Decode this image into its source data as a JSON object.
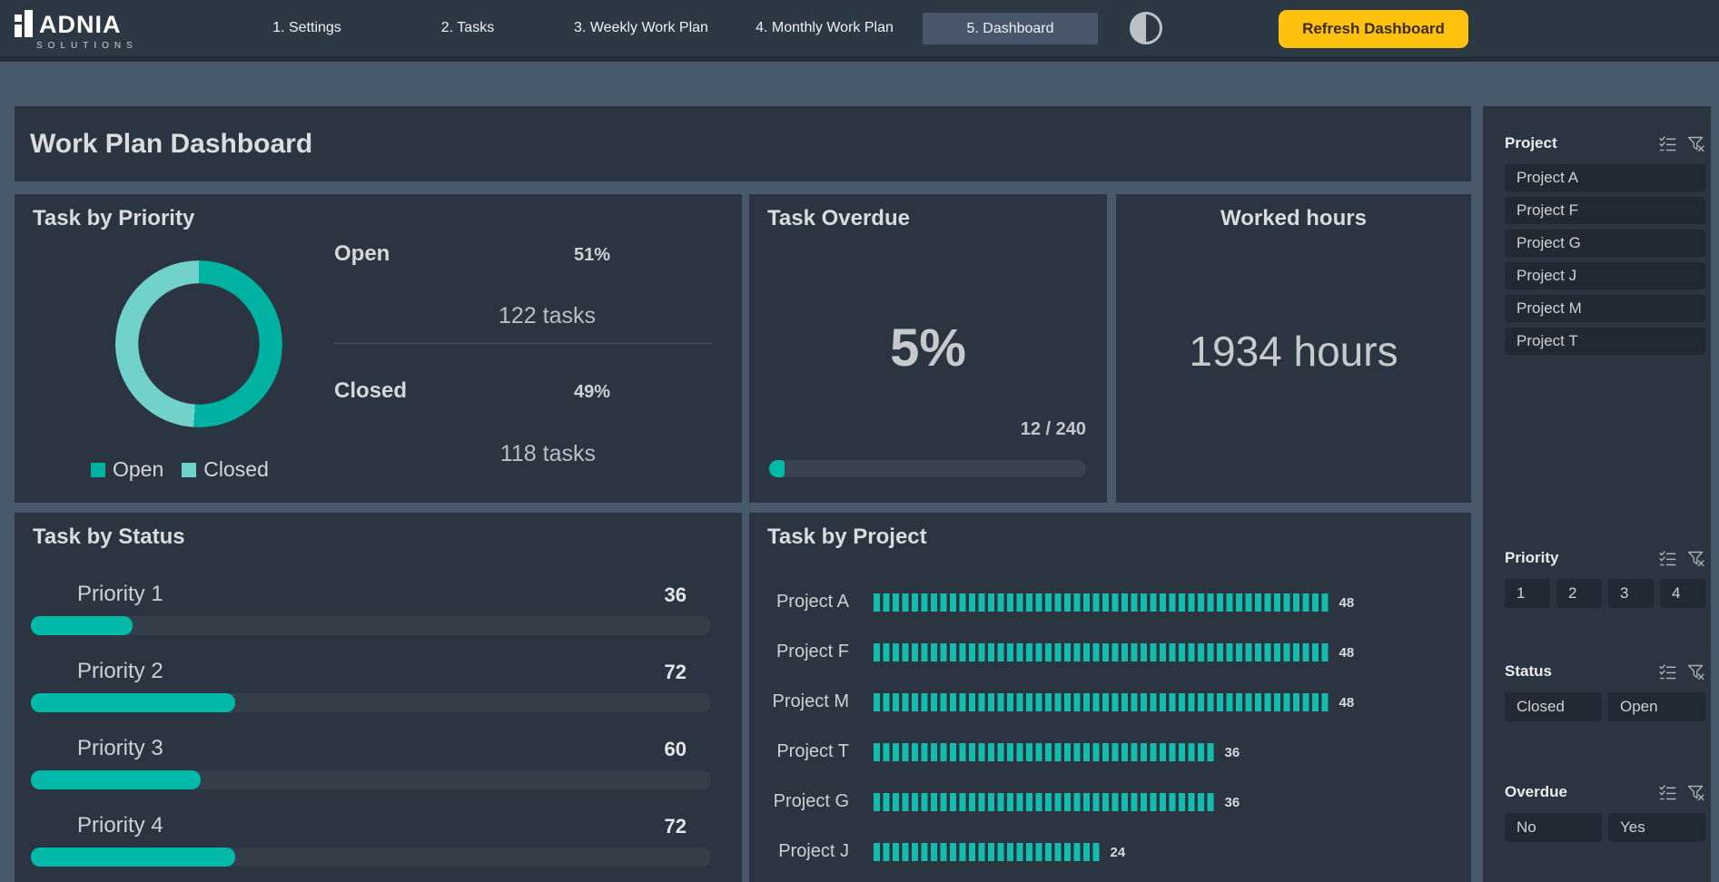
{
  "nav": {
    "brand": "ADNIA",
    "brand_sub": "SOLUTIONS",
    "tabs": [
      {
        "label": "1. Settings",
        "active": false
      },
      {
        "label": "2. Tasks",
        "active": false
      },
      {
        "label": "3. Weekly Work Plan",
        "active": false
      },
      {
        "label": "4. Monthly Work Plan",
        "active": false
      },
      {
        "label": "5. Dashboard",
        "active": true
      }
    ],
    "refresh_label": "Refresh Dashboard"
  },
  "page_title": "Work Plan Dashboard",
  "panels": {
    "task_by_priority": {
      "title": "Task by Priority",
      "chart_data": {
        "type": "pie",
        "donut": true,
        "categories": [
          "Open",
          "Closed"
        ],
        "values": [
          51,
          49
        ],
        "unit": "%",
        "task_counts": [
          122,
          118
        ],
        "colors": [
          "#00b2a2",
          "#70d2ca"
        ],
        "legend_position": "bottom"
      },
      "legend": [
        {
          "label": "Open",
          "color": "#00b2a2"
        },
        {
          "label": "Closed",
          "color": "#70d2ca"
        }
      ],
      "stats": [
        {
          "label": "Open",
          "pct": "51%",
          "tasks": "122 tasks"
        },
        {
          "label": "Closed",
          "pct": "49%",
          "tasks": "118 tasks"
        }
      ]
    },
    "task_overdue": {
      "title": "Task Overdue",
      "pct": "5%",
      "ratio": "12 / 240",
      "progress_value": 12,
      "progress_max": 240
    },
    "worked_hours": {
      "title": "Worked hours",
      "value": "1934 hours"
    },
    "task_by_status": {
      "title": "Task by Status",
      "chart_data": {
        "type": "bar",
        "orientation": "horizontal",
        "categories": [
          "Priority 1",
          "Priority 2",
          "Priority 3",
          "Priority 4"
        ],
        "values": [
          36,
          72,
          60,
          72
        ],
        "xmax": 240
      },
      "bar_color": "#00b9a8"
    },
    "task_by_project": {
      "title": "Task by Project",
      "chart_data": {
        "type": "bar",
        "orientation": "horizontal",
        "segmented": true,
        "categories": [
          "Project A",
          "Project F",
          "Project M",
          "Project T",
          "Project G",
          "Project J"
        ],
        "values": [
          48,
          48,
          48,
          36,
          36,
          24
        ]
      },
      "bar_color": "#14bcae"
    }
  },
  "sidebar": {
    "slicers": [
      {
        "title": "Project",
        "columns": 1,
        "items": [
          "Project A",
          "Project F",
          "Project G",
          "Project J",
          "Project M",
          "Project T"
        ]
      },
      {
        "title": "Priority",
        "columns": 4,
        "items": [
          "1",
          "2",
          "3",
          "4"
        ]
      },
      {
        "title": "Status",
        "columns": 2,
        "items": [
          "Closed",
          "Open"
        ]
      },
      {
        "title": "Overdue",
        "columns": 2,
        "items": [
          "No",
          "Yes"
        ]
      }
    ]
  },
  "colors": {
    "accent_teal": "#00b9a8",
    "accent_teal_light": "#70d2ca",
    "refresh_yellow": "#ffc20e",
    "panel_bg": "#2b3541",
    "page_bg": "#48596b",
    "nav_bg": "#2c3843"
  }
}
